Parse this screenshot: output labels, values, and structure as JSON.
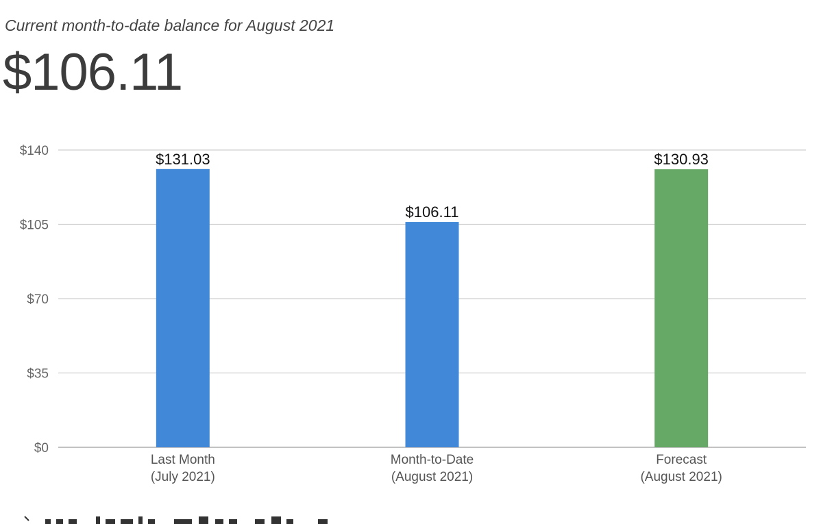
{
  "header": {
    "subtitle": "Current month-to-date balance for August 2021",
    "balance": "$106.11"
  },
  "chart_data": {
    "type": "bar",
    "categories": [
      [
        "Last Month",
        "(July 2021)"
      ],
      [
        "Month-to-Date",
        "(August 2021)"
      ],
      [
        "Forecast",
        "(August 2021)"
      ]
    ],
    "values": [
      131.03,
      106.11,
      130.93
    ],
    "data_labels": [
      "$131.03",
      "$106.11",
      "$130.93"
    ],
    "bar_colors": [
      "#4189d8",
      "#4189d8",
      "#66a865"
    ],
    "ylim": [
      0,
      140
    ],
    "yticks": [
      0,
      35,
      70,
      105,
      140
    ],
    "ytick_labels": [
      "$0",
      "$35",
      "$70",
      "$105",
      "$140"
    ],
    "grid": true,
    "xlabel": "",
    "ylabel": ""
  }
}
